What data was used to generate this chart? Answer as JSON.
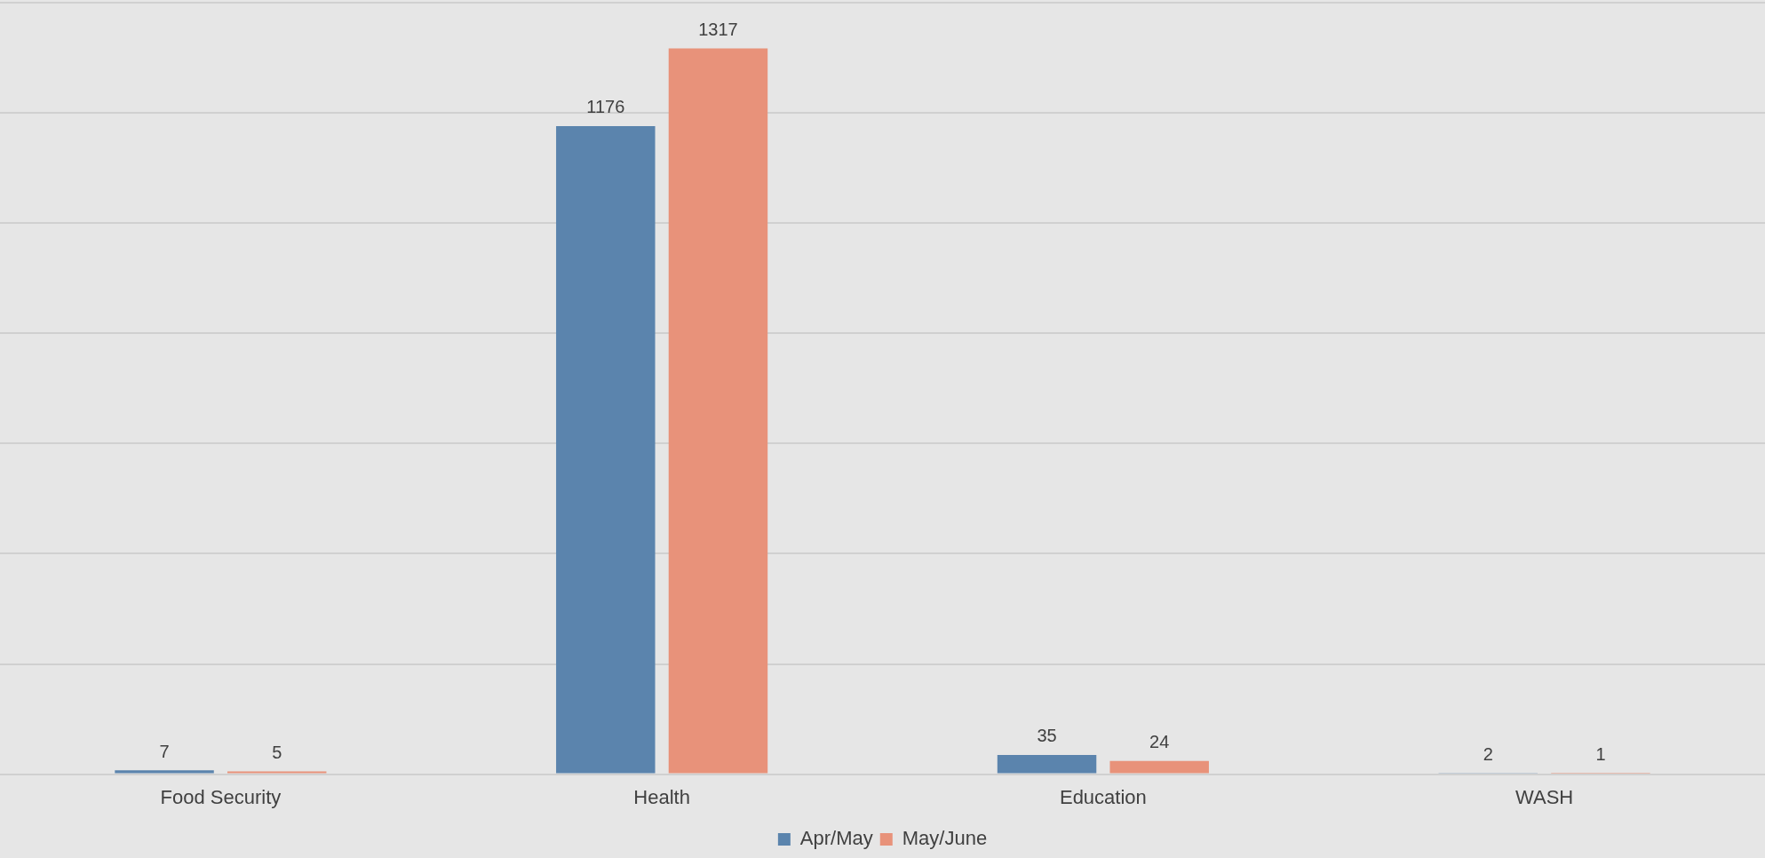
{
  "chart_data": {
    "type": "bar",
    "categories": [
      "Food Security",
      "Health",
      "Education",
      "WASH"
    ],
    "series": [
      {
        "name": "Apr/May",
        "color": "#5b84ad",
        "values": [
          7,
          1176,
          35,
          2
        ]
      },
      {
        "name": "May/June",
        "color": "#e8927a",
        "values": [
          5,
          1317,
          24,
          1
        ]
      }
    ],
    "ylim": [
      0,
      1400
    ],
    "yticks": [
      {
        "value": 0,
        "label": null
      },
      {
        "value": 200,
        "label": null
      },
      {
        "value": 400,
        "label": null
      },
      {
        "value": 600,
        "label": null
      },
      {
        "value": 800,
        "label": null
      },
      {
        "value": 1000,
        "label": null
      },
      {
        "value": 1200,
        "label": null
      },
      {
        "value": 1400,
        "label": null
      }
    ],
    "tick_labels": "x",
    "grid": "y",
    "data_labels": true,
    "legend": "bottom"
  }
}
